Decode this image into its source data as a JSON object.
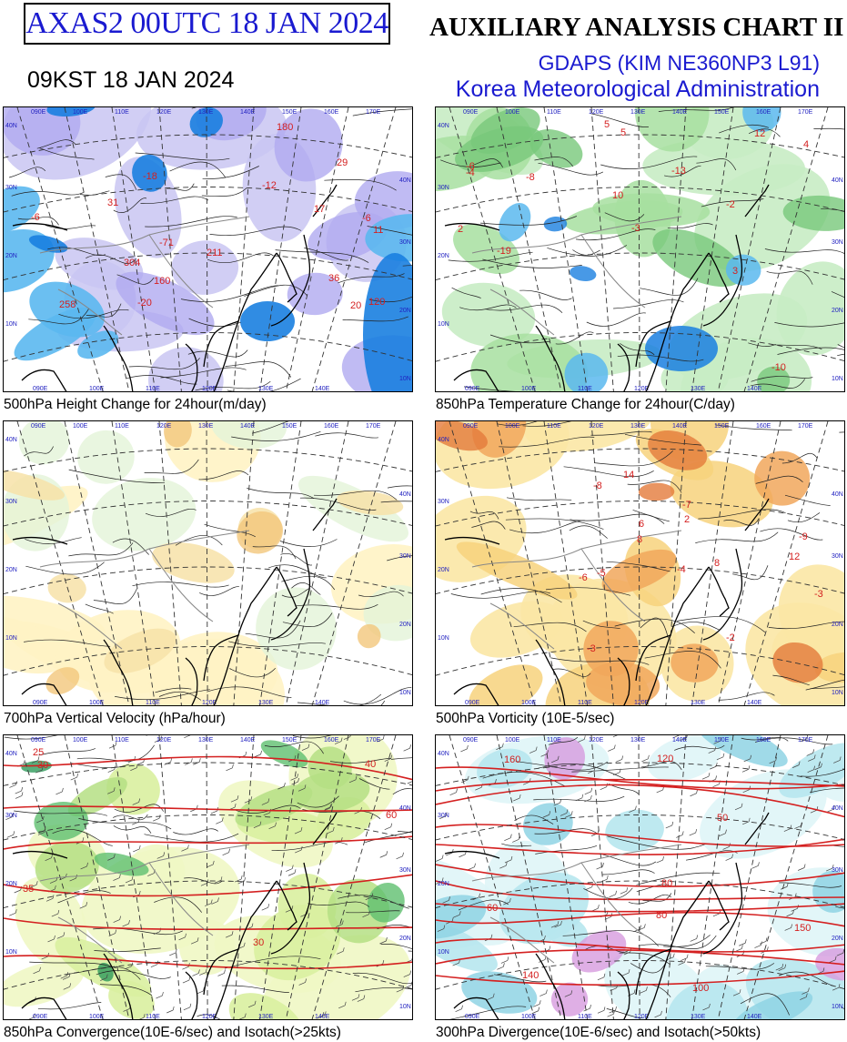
{
  "header": {
    "product_code": "AXAS2  00UTC 18 JAN 2024",
    "title": "AUXILIARY ANALYSIS CHART II",
    "model": "GDAPS (KIM NE360NP3 L91)",
    "agency": "Korea Meteorological Administration",
    "local_time": "09KST 18 JAN 2024"
  },
  "panels": [
    {
      "caption": "500hPa Height Change for 24hour(m/day)",
      "theme": "height",
      "labels": [
        "-18",
        "-6",
        "-12",
        "11",
        "-71",
        "120",
        "160",
        "180",
        "20",
        "29",
        "31",
        "36",
        "17",
        "-20",
        "258",
        "211",
        "304",
        "-6"
      ]
    },
    {
      "caption": "850hPa Temperature Change for 24hour(C/day)",
      "theme": "temp",
      "labels": [
        "2",
        "5",
        "-2",
        "4",
        "-6",
        "-10",
        "-19",
        "-13",
        "10",
        "12",
        "-3",
        "3",
        "5",
        "-4",
        "-8"
      ]
    },
    {
      "caption": "700hPa Vertical Velocity (hPa/hour)",
      "theme": "vvel",
      "labels": []
    },
    {
      "caption": "500hPa Vorticity (10E-5/sec)",
      "theme": "vort",
      "labels": [
        "-3",
        "6",
        "12",
        "-9",
        "-6",
        "8",
        "-7",
        "-5",
        "8",
        "-2",
        "-3",
        "-4",
        "2",
        "14",
        "-8"
      ]
    },
    {
      "caption": "850hPa Convergence(10E-6/sec) and Isotach(>25kts)",
      "theme": "conv",
      "labels": [
        "30",
        "25",
        "35",
        "40",
        "60",
        "30"
      ]
    },
    {
      "caption": "300hPa Divergence(10E-6/sec) and Isotach(>50kts)",
      "theme": "div",
      "labels": [
        "50",
        "80",
        "60",
        "150",
        "100",
        "120",
        "160",
        "140",
        "80"
      ]
    }
  ],
  "map_grid": {
    "lat_labels": [
      "40N",
      "30N",
      "20N",
      "10N"
    ],
    "lon_labels": [
      "090E",
      "100E",
      "110E",
      "120E",
      "130E",
      "140E",
      "150E",
      "160E",
      "170E"
    ]
  },
  "colors": {
    "title_blue": "#1a1ad0",
    "label_red": "#d42020",
    "grid_blue": "#2020c0"
  }
}
